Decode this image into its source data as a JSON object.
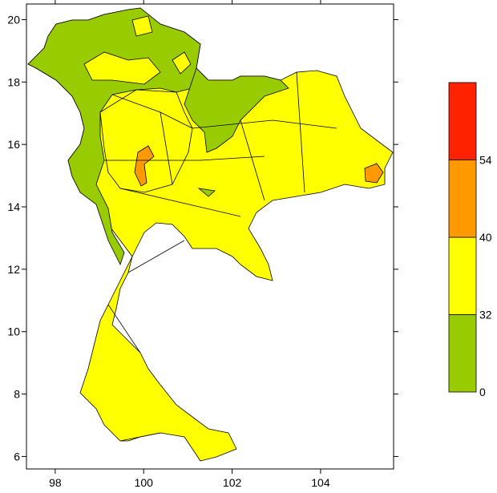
{
  "chart_data": {
    "type": "contour-map",
    "xlim": [
      97.35,
      105.65
    ],
    "ylim": [
      5.6,
      20.5
    ],
    "xticks": [
      98,
      100,
      102,
      104
    ],
    "yticks": [
      6,
      8,
      10,
      12,
      14,
      16,
      18,
      20
    ],
    "colorbar": {
      "levels": [
        0,
        32,
        40,
        54
      ],
      "colors": [
        "#99cc00",
        "#ffff00",
        "#ff9900",
        "#ff2200"
      ]
    }
  }
}
